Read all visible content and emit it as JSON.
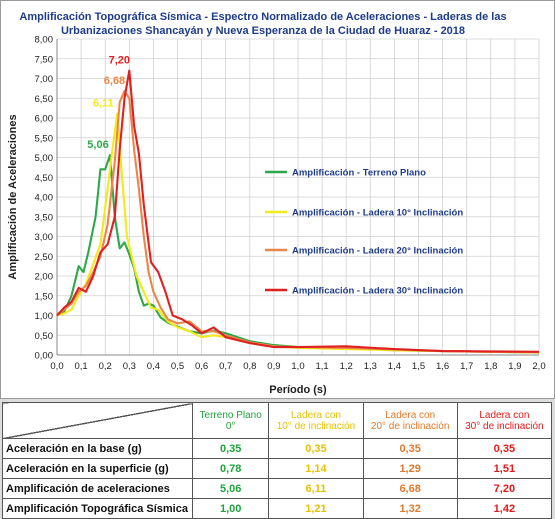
{
  "chart_data": {
    "type": "line",
    "title_lines": [
      "Amplificación Topográfica Sísmica - Espectro Normalizado de Aceleraciones -  Laderas de las",
      "Urbanizaciones Shancayán y Nueva Esperanza de la Ciudad de Huaraz - 2018"
    ],
    "xlabel": "Período (s)",
    "ylabel": "Amplificación de Aceleraciones",
    "xlim": [
      0,
      2.0
    ],
    "ylim": [
      0,
      8
    ],
    "xticks": [
      "0,0",
      "0,1",
      "0,2",
      "0,3",
      "0,4",
      "0,5",
      "0,6",
      "0,7",
      "0,8",
      "0,9",
      "1,0",
      "1,1",
      "1,2",
      "1,3",
      "1,4",
      "1,5",
      "1,6",
      "1,7",
      "1,8",
      "1,9",
      "2,0"
    ],
    "yticks": [
      "0,00",
      "0,50",
      "1,00",
      "1,50",
      "2,00",
      "2,50",
      "3,00",
      "3,50",
      "4,00",
      "4,50",
      "5,00",
      "5,50",
      "6,00",
      "6,50",
      "7,00",
      "7,50",
      "8,00"
    ],
    "grid": true,
    "legend_position": "right",
    "series": [
      {
        "name": "Amplificación - Terreno Plano",
        "color": "#2ca84a",
        "x": [
          0.0,
          0.03,
          0.06,
          0.09,
          0.11,
          0.13,
          0.16,
          0.18,
          0.2,
          0.22,
          0.24,
          0.26,
          0.28,
          0.3,
          0.32,
          0.34,
          0.36,
          0.38,
          0.4,
          0.43,
          0.46,
          0.5,
          0.55,
          0.6,
          0.65,
          0.7,
          0.8,
          0.9,
          1.0,
          1.2,
          1.4,
          1.6,
          1.8,
          2.0
        ],
        "y": [
          1.0,
          1.1,
          1.5,
          2.25,
          2.1,
          2.6,
          3.5,
          4.7,
          4.7,
          5.06,
          3.5,
          2.7,
          2.85,
          2.55,
          2.2,
          1.6,
          1.25,
          1.3,
          1.25,
          0.95,
          0.82,
          0.72,
          0.6,
          0.55,
          0.62,
          0.55,
          0.35,
          0.25,
          0.2,
          0.2,
          0.12,
          0.1,
          0.08,
          0.06
        ],
        "peak_label": "5,06",
        "peak": [
          0.22,
          5.06
        ]
      },
      {
        "name": "Amplificación - Ladera 10° Inclinación",
        "color": "#f2ea1a",
        "x": [
          0.0,
          0.03,
          0.06,
          0.09,
          0.12,
          0.15,
          0.18,
          0.21,
          0.23,
          0.25,
          0.27,
          0.29,
          0.31,
          0.33,
          0.36,
          0.39,
          0.42,
          0.46,
          0.5,
          0.55,
          0.6,
          0.65,
          0.7,
          0.8,
          0.9,
          1.0,
          1.2,
          1.4,
          1.6,
          1.8,
          2.0
        ],
        "y": [
          1.0,
          1.05,
          1.15,
          1.5,
          1.8,
          2.3,
          2.8,
          4.2,
          5.2,
          6.11,
          4.5,
          3.0,
          2.5,
          2.0,
          1.6,
          1.2,
          1.15,
          0.85,
          0.7,
          0.6,
          0.45,
          0.5,
          0.45,
          0.3,
          0.22,
          0.18,
          0.15,
          0.12,
          0.1,
          0.08,
          0.06
        ],
        "peak_label": "6,11",
        "peak": [
          0.25,
          6.11
        ]
      },
      {
        "name": "Amplificación - Ladera 20° Inclinación",
        "color": "#e8874a",
        "x": [
          0.0,
          0.03,
          0.06,
          0.09,
          0.12,
          0.15,
          0.18,
          0.21,
          0.24,
          0.26,
          0.28,
          0.3,
          0.32,
          0.34,
          0.36,
          0.38,
          0.4,
          0.43,
          0.46,
          0.5,
          0.55,
          0.6,
          0.65,
          0.7,
          0.8,
          0.9,
          1.0,
          1.2,
          1.4,
          1.6,
          1.8,
          2.0
        ],
        "y": [
          1.0,
          1.15,
          1.3,
          1.6,
          1.75,
          2.1,
          2.5,
          3.3,
          4.9,
          6.4,
          6.68,
          6.5,
          5.2,
          4.2,
          3.0,
          2.1,
          1.6,
          1.2,
          0.9,
          0.8,
          0.85,
          0.6,
          0.6,
          0.5,
          0.32,
          0.22,
          0.2,
          0.18,
          0.14,
          0.1,
          0.08,
          0.07
        ],
        "peak_label": "6,68",
        "peak": [
          0.28,
          6.68
        ]
      },
      {
        "name": "Amplificación - Ladera 30° Inclinación",
        "color": "#e02020",
        "x": [
          0.0,
          0.03,
          0.06,
          0.09,
          0.12,
          0.15,
          0.18,
          0.21,
          0.24,
          0.26,
          0.28,
          0.3,
          0.32,
          0.34,
          0.36,
          0.39,
          0.42,
          0.45,
          0.48,
          0.52,
          0.56,
          0.6,
          0.65,
          0.7,
          0.8,
          0.9,
          1.0,
          1.2,
          1.4,
          1.6,
          1.8,
          2.0
        ],
        "y": [
          1.0,
          1.2,
          1.35,
          1.7,
          1.6,
          2.0,
          2.6,
          2.8,
          3.5,
          5.2,
          6.5,
          7.2,
          5.8,
          5.1,
          3.8,
          2.35,
          2.1,
          1.6,
          1.0,
          0.9,
          0.75,
          0.55,
          0.7,
          0.45,
          0.3,
          0.2,
          0.2,
          0.22,
          0.15,
          0.1,
          0.09,
          0.08
        ],
        "peak_label": "7,20",
        "peak": [
          0.3,
          7.2
        ]
      }
    ]
  },
  "table": {
    "headers": [
      [
        "Terreno Plano",
        "0°"
      ],
      [
        "Ladera con",
        "10° de inclinación"
      ],
      [
        "Ladera con",
        "20° de inclinación"
      ],
      [
        "Ladera con",
        "30° de inclinación"
      ]
    ],
    "rows": [
      {
        "label": "Aceleración en la base (g)",
        "values": [
          "0,35",
          "0,35",
          "0,35",
          "0,35"
        ]
      },
      {
        "label": "Aceleración en la superficie (g)",
        "values": [
          "0,78",
          "1,14",
          "1,29",
          "1,51"
        ]
      },
      {
        "label": "Amplificación de aceleraciones",
        "values": [
          "5,06",
          "6,11",
          "6,68",
          "7,20"
        ]
      },
      {
        "label": "Amplificación Topográfica Sísmica",
        "values": [
          "1,00",
          "1,21",
          "1,32",
          "1,42"
        ]
      }
    ]
  }
}
